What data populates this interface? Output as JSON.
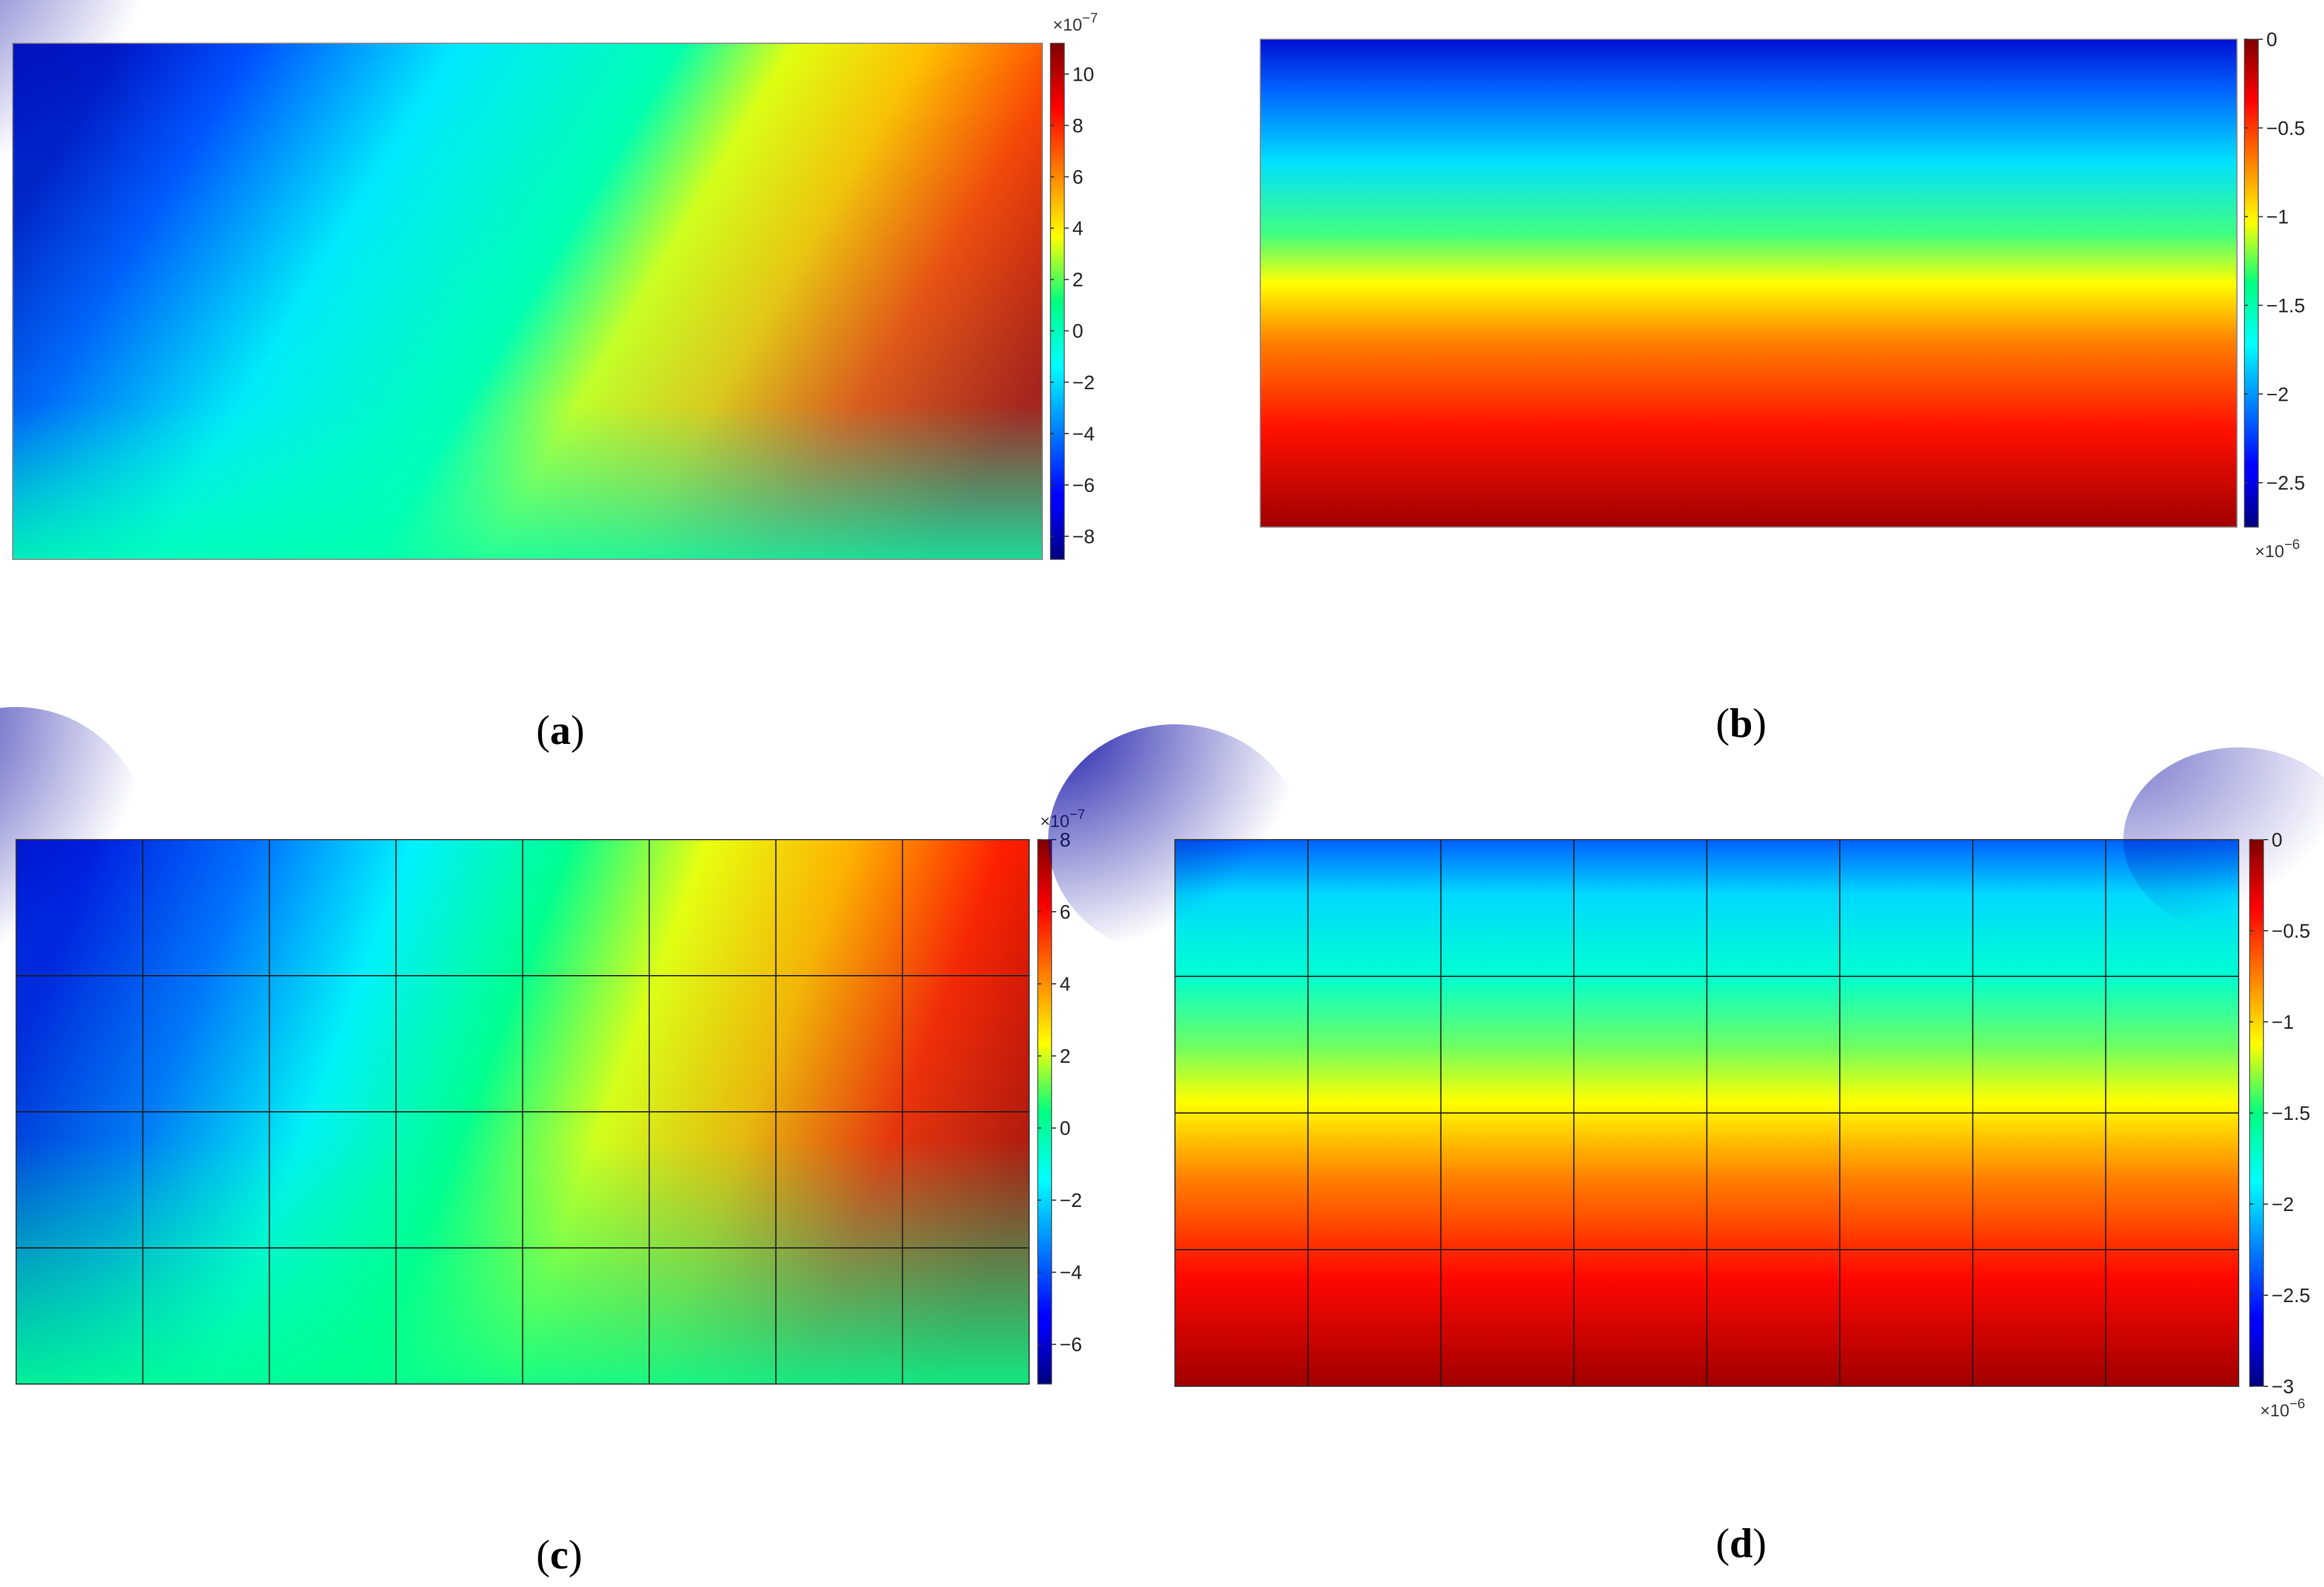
{
  "chart_data": [
    {
      "type": "heatmap",
      "panel_label": "a",
      "colorbar": {
        "ticks": [
          "10",
          "8",
          "6",
          "4",
          "2",
          "0",
          "−2",
          "−4",
          "−6",
          "−8"
        ],
        "tick_values": [
          10,
          8,
          6,
          4,
          2,
          0,
          -2,
          -4,
          -6,
          -8
        ],
        "range": [
          -8.9,
          11.2
        ],
        "exponent_base": "×10",
        "exponent": "−7",
        "exponent_position": "top"
      },
      "colormap": "jet",
      "mesh_grid": false
    },
    {
      "type": "heatmap",
      "panel_label": "b",
      "colorbar": {
        "ticks": [
          "0",
          "−0.5",
          "−1",
          "−1.5",
          "−2",
          "−2.5"
        ],
        "tick_values": [
          0,
          -0.5,
          -1,
          -1.5,
          -2,
          -2.5
        ],
        "range": [
          -2.75,
          0
        ],
        "exponent_base": "×10",
        "exponent": "−6",
        "exponent_position": "bottom"
      },
      "colormap": "jet",
      "mesh_grid": false
    },
    {
      "type": "heatmap",
      "panel_label": "c",
      "colorbar": {
        "ticks": [
          "8",
          "6",
          "4",
          "2",
          "0",
          "−2",
          "−4",
          "−6"
        ],
        "tick_values": [
          8,
          6,
          4,
          2,
          0,
          -2,
          -4,
          -6
        ],
        "range": [
          -7.1,
          8
        ],
        "exponent_base": "×10",
        "exponent": "−7",
        "exponent_position": "top"
      },
      "colormap": "jet",
      "mesh_grid": true,
      "mesh": {
        "columns": 8,
        "rows": 4
      }
    },
    {
      "type": "heatmap",
      "panel_label": "d",
      "colorbar": {
        "ticks": [
          "0",
          "−0.5",
          "−1",
          "−1.5",
          "−2",
          "−2.5",
          "−3"
        ],
        "tick_values": [
          0,
          -0.5,
          -1,
          -1.5,
          -2,
          -2.5,
          -3
        ],
        "range": [
          -3,
          0
        ],
        "exponent_base": "×10",
        "exponent": "−6",
        "exponent_position": "bottom"
      },
      "colormap": "jet",
      "mesh_grid": true,
      "mesh": {
        "columns": 8,
        "rows": 4
      }
    }
  ]
}
